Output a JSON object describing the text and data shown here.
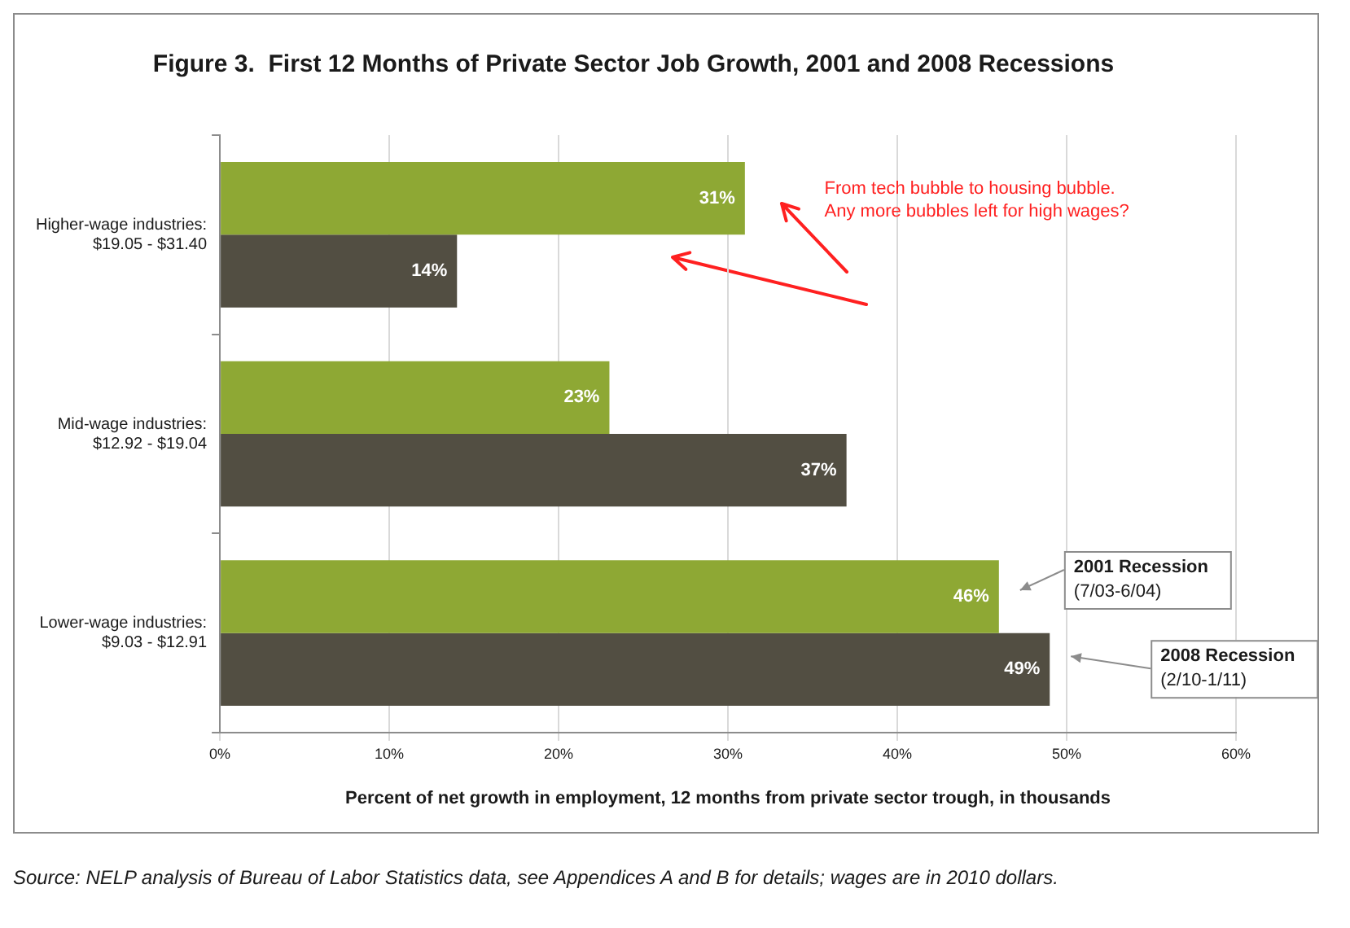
{
  "chart_data": {
    "type": "bar",
    "orientation": "horizontal",
    "title": "Figure 3.  First 12 Months of Private Sector Job Growth, 2001 and 2008 Recessions",
    "xlabel": "Percent of net growth in employment, 12 months from private sector trough, in thousands",
    "categories": [
      "Higher-wage industries:\n$19.05 - $31.40",
      "Mid-wage industries:\n$12.92 - $19.04",
      "Lower-wage industries:\n$9.03 - $12.91"
    ],
    "series": [
      {
        "name": "2001 Recession",
        "color": "#8ea834",
        "values": [
          31,
          23,
          46
        ]
      },
      {
        "name": "2008 Recession",
        "color": "#524e42",
        "values": [
          14,
          37,
          49
        ]
      }
    ],
    "xlim": [
      0,
      60
    ],
    "xticks": [
      {
        "value": 0,
        "label": "0%"
      },
      {
        "value": 10,
        "label": "10%"
      },
      {
        "value": 20,
        "label": "20%"
      },
      {
        "value": 30,
        "label": "30%"
      },
      {
        "value": 40,
        "label": "40%"
      },
      {
        "value": 50,
        "label": "50%"
      },
      {
        "value": 60,
        "label": "60%"
      }
    ],
    "grid": "x",
    "legend": false,
    "value_labels": [
      [
        "31%",
        "23%",
        "46%"
      ],
      [
        "14%",
        "37%",
        "49%"
      ]
    ],
    "annotations": [
      "From tech bubble to housing bubble.\nAny more bubbles left for high wages?",
      "(7/03-6/04)",
      "(2/10-1/11)",
      "Source: NELP analysis of Bureau of Labor Statistics data, see Appendices A and B for details; wages are in 2010 dollars."
    ]
  }
}
